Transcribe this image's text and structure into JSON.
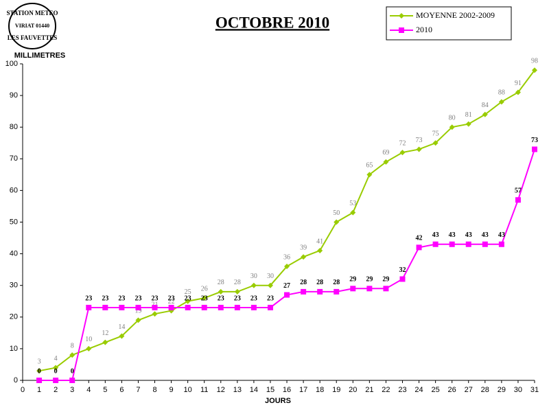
{
  "logo": {
    "line1": "STATION METEO",
    "line2": "VIRIAT 01440",
    "line3": "LES FAUVETTES"
  },
  "chart_data": {
    "type": "line",
    "title": "OCTOBRE 2010",
    "y_label": "MILLIMETRES",
    "x_label": "JOURS",
    "x": [
      1,
      2,
      3,
      4,
      5,
      6,
      7,
      8,
      9,
      10,
      11,
      12,
      13,
      14,
      15,
      16,
      17,
      18,
      19,
      20,
      21,
      22,
      23,
      24,
      25,
      26,
      27,
      28,
      29,
      30,
      31
    ],
    "series": [
      {
        "name": "MOYENNE 2002-2009",
        "color": "#99cc00",
        "marker": "diamond",
        "values": [
          3,
          4,
          8,
          10,
          12,
          14,
          19,
          21,
          22,
          25,
          26,
          28,
          28,
          30,
          30,
          36,
          39,
          41,
          50,
          53,
          65,
          69,
          72,
          73,
          75,
          80,
          81,
          84,
          88,
          91,
          98
        ]
      },
      {
        "name": "2010",
        "color": "#ff00ff",
        "marker": "square",
        "values": [
          0,
          0,
          0,
          23,
          23,
          23,
          23,
          23,
          23,
          23,
          23,
          23,
          23,
          23,
          23,
          27,
          28,
          28,
          28,
          29,
          29,
          29,
          32,
          42,
          43,
          43,
          43,
          43,
          43,
          57,
          73
        ]
      }
    ],
    "xlim": [
      0,
      31
    ],
    "xticks": [
      0,
      1,
      2,
      3,
      4,
      5,
      6,
      7,
      8,
      9,
      10,
      11,
      12,
      13,
      14,
      15,
      16,
      17,
      18,
      19,
      20,
      21,
      22,
      23,
      24,
      25,
      26,
      27,
      28,
      29,
      30,
      31
    ],
    "ylim": [
      0,
      100
    ],
    "yticks": [
      0,
      10,
      20,
      30,
      40,
      50,
      60,
      70,
      80,
      90,
      100
    ],
    "grid": false,
    "legend": "top-right"
  }
}
